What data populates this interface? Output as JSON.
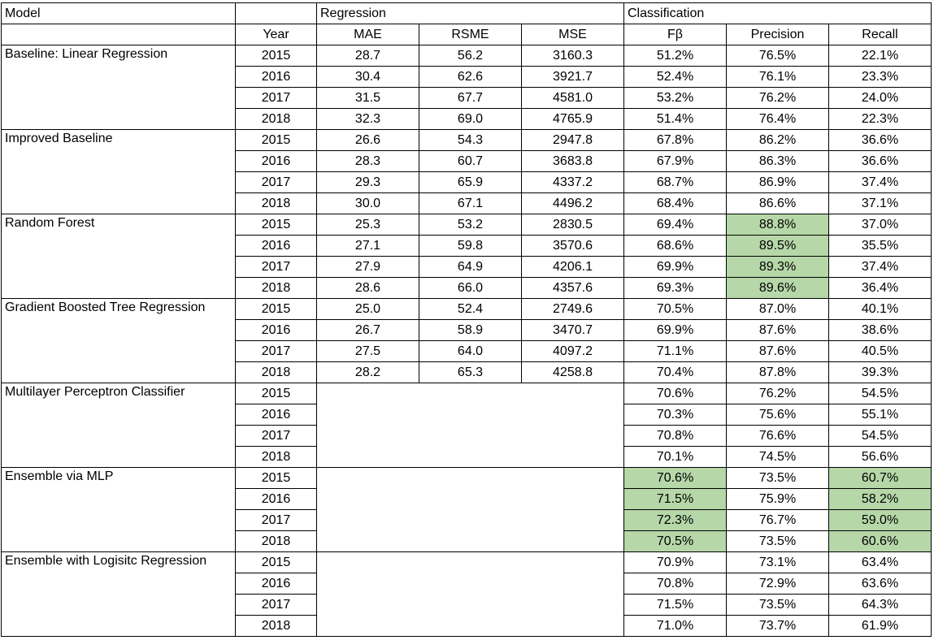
{
  "chart_data": {
    "type": "table",
    "highlight_color": "#b6d7a8",
    "header": {
      "model": "Model",
      "regression": "Regression",
      "classification": "Classification",
      "year": "Year",
      "mae": "MAE",
      "rsme": "RSME",
      "mse": "MSE",
      "fbeta": "Fβ",
      "precision": "Precision",
      "recall": "Recall"
    },
    "models": [
      {
        "name": "Baseline: Linear Regression",
        "rows": [
          {
            "year": "2015",
            "mae": "28.7",
            "rsme": "56.2",
            "mse": "3160.3",
            "fbeta": "51.2%",
            "precision": "76.5%",
            "recall": "22.1%"
          },
          {
            "year": "2016",
            "mae": "30.4",
            "rsme": "62.6",
            "mse": "3921.7",
            "fbeta": "52.4%",
            "precision": "76.1%",
            "recall": "23.3%"
          },
          {
            "year": "2017",
            "mae": "31.5",
            "rsme": "67.7",
            "mse": "4581.0",
            "fbeta": "53.2%",
            "precision": "76.2%",
            "recall": "24.0%"
          },
          {
            "year": "2018",
            "mae": "32.3",
            "rsme": "69.0",
            "mse": "4765.9",
            "fbeta": "51.4%",
            "precision": "76.4%",
            "recall": "22.3%"
          }
        ]
      },
      {
        "name": "Improved Baseline",
        "rows": [
          {
            "year": "2015",
            "mae": "26.6",
            "rsme": "54.3",
            "mse": "2947.8",
            "fbeta": "67.8%",
            "precision": "86.2%",
            "recall": "36.6%"
          },
          {
            "year": "2016",
            "mae": "28.3",
            "rsme": "60.7",
            "mse": "3683.8",
            "fbeta": "67.9%",
            "precision": "86.3%",
            "recall": "36.6%"
          },
          {
            "year": "2017",
            "mae": "29.3",
            "rsme": "65.9",
            "mse": "4337.2",
            "fbeta": "68.7%",
            "precision": "86.9%",
            "recall": "37.4%"
          },
          {
            "year": "2018",
            "mae": "30.0",
            "rsme": "67.1",
            "mse": "4496.2",
            "fbeta": "68.4%",
            "precision": "86.6%",
            "recall": "37.1%"
          }
        ]
      },
      {
        "name": "Random Forest",
        "rows": [
          {
            "year": "2015",
            "mae": "25.3",
            "rsme": "53.2",
            "mse": "2830.5",
            "fbeta": "69.4%",
            "precision": "88.8%",
            "recall": "37.0%",
            "hl": [
              "precision"
            ]
          },
          {
            "year": "2016",
            "mae": "27.1",
            "rsme": "59.8",
            "mse": "3570.6",
            "fbeta": "68.6%",
            "precision": "89.5%",
            "recall": "35.5%",
            "hl": [
              "precision"
            ]
          },
          {
            "year": "2017",
            "mae": "27.9",
            "rsme": "64.9",
            "mse": "4206.1",
            "fbeta": "69.9%",
            "precision": "89.3%",
            "recall": "37.4%",
            "hl": [
              "precision"
            ]
          },
          {
            "year": "2018",
            "mae": "28.6",
            "rsme": "66.0",
            "mse": "4357.6",
            "fbeta": "69.3%",
            "precision": "89.6%",
            "recall": "36.4%",
            "hl": [
              "precision"
            ]
          }
        ]
      },
      {
        "name": "Gradient Boosted Tree Regression",
        "rows": [
          {
            "year": "2015",
            "mae": "25.0",
            "rsme": "52.4",
            "mse": "2749.6",
            "fbeta": "70.5%",
            "precision": "87.0%",
            "recall": "40.1%"
          },
          {
            "year": "2016",
            "mae": "26.7",
            "rsme": "58.9",
            "mse": "3470.7",
            "fbeta": "69.9%",
            "precision": "87.6%",
            "recall": "38.6%"
          },
          {
            "year": "2017",
            "mae": "27.5",
            "rsme": "64.0",
            "mse": "4097.2",
            "fbeta": "71.1%",
            "precision": "87.6%",
            "recall": "40.5%"
          },
          {
            "year": "2018",
            "mae": "28.2",
            "rsme": "65.3",
            "mse": "4258.8",
            "fbeta": "70.4%",
            "precision": "87.8%",
            "recall": "39.3%"
          }
        ]
      },
      {
        "name": "Multilayer Perceptron Classifier",
        "no_regression": true,
        "rows": [
          {
            "year": "2015",
            "fbeta": "70.6%",
            "precision": "76.2%",
            "recall": "54.5%"
          },
          {
            "year": "2016",
            "fbeta": "70.3%",
            "precision": "75.6%",
            "recall": "55.1%"
          },
          {
            "year": "2017",
            "fbeta": "70.8%",
            "precision": "76.6%",
            "recall": "54.5%"
          },
          {
            "year": "2018",
            "fbeta": "70.1%",
            "precision": "74.5%",
            "recall": "56.6%"
          }
        ]
      },
      {
        "name": "Ensemble via MLP",
        "no_regression": true,
        "rows": [
          {
            "year": "2015",
            "fbeta": "70.6%",
            "precision": "73.5%",
            "recall": "60.7%",
            "hl": [
              "fbeta",
              "recall"
            ]
          },
          {
            "year": "2016",
            "fbeta": "71.5%",
            "precision": "75.9%",
            "recall": "58.2%",
            "hl": [
              "fbeta",
              "recall"
            ]
          },
          {
            "year": "2017",
            "fbeta": "72.3%",
            "precision": "76.7%",
            "recall": "59.0%",
            "hl": [
              "fbeta",
              "recall"
            ]
          },
          {
            "year": "2018",
            "fbeta": "70.5%",
            "precision": "73.5%",
            "recall": "60.6%",
            "hl": [
              "fbeta",
              "recall"
            ]
          }
        ]
      },
      {
        "name": "Ensemble with Logisitc Regression",
        "no_regression": true,
        "rows": [
          {
            "year": "2015",
            "fbeta": "70.9%",
            "precision": "73.1%",
            "recall": "63.4%"
          },
          {
            "year": "2016",
            "fbeta": "70.8%",
            "precision": "72.9%",
            "recall": "63.6%"
          },
          {
            "year": "2017",
            "fbeta": "71.5%",
            "precision": "73.5%",
            "recall": "64.3%"
          },
          {
            "year": "2018",
            "fbeta": "71.0%",
            "precision": "73.7%",
            "recall": "61.9%"
          }
        ]
      }
    ]
  }
}
